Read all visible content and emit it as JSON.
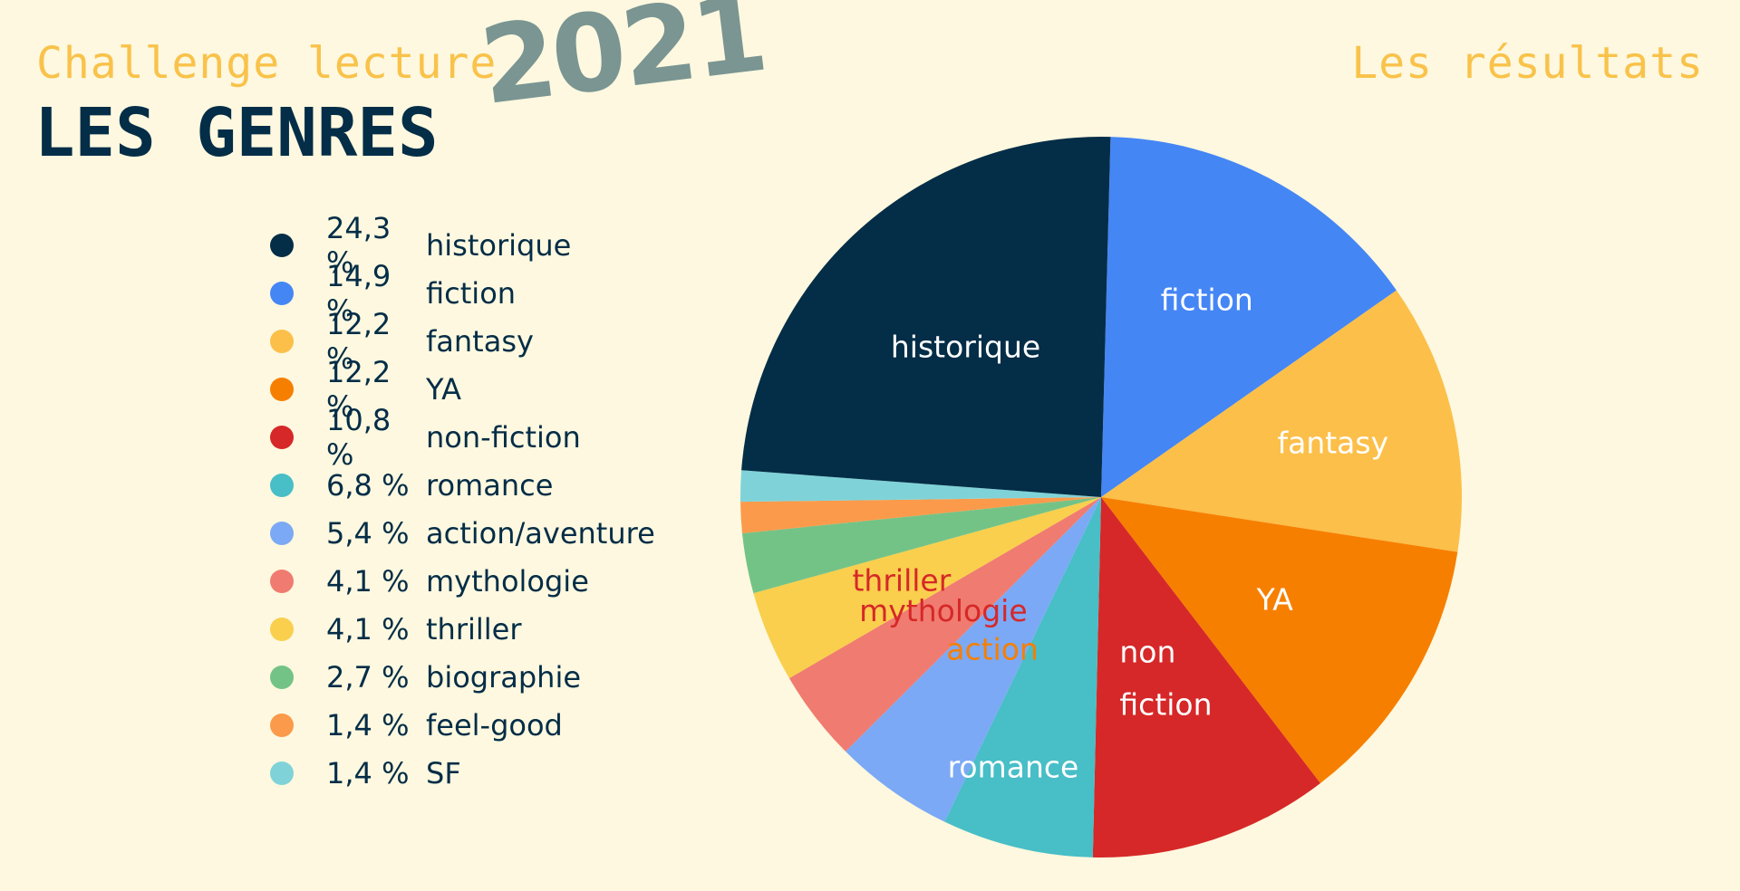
{
  "header": {
    "subtitle": "Challenge lecture",
    "year": "2021",
    "title": "LES GENRES",
    "results_label": "Les résultats"
  },
  "colors": {
    "background": "#fdf8df",
    "title": "#042d47",
    "accent": "#f9c24a",
    "year": "#7a9592"
  },
  "legend": [
    {
      "pct": "24,3 %",
      "label": "historique",
      "color": "#042d47"
    },
    {
      "pct": "14,9 %",
      "label": "fiction",
      "color": "#4586f5"
    },
    {
      "pct": "12,2 %",
      "label": "fantasy",
      "color": "#fcbf49"
    },
    {
      "pct": "12,2 %",
      "label": "YA",
      "color": "#f77f00"
    },
    {
      "pct": "10,8 %",
      "label": "non-fiction",
      "color": "#d62828"
    },
    {
      "pct": "6,8 %",
      "label": "romance",
      "color": "#48bec7"
    },
    {
      "pct": "5,4 %",
      "label": "action/aventure",
      "color": "#7ba9f5"
    },
    {
      "pct": "4,1 %",
      "label": "mythologie",
      "color": "#f07b70"
    },
    {
      "pct": "4,1 %",
      "label": "thriller",
      "color": "#f9cf4d"
    },
    {
      "pct": "2,7 %",
      "label": "biographie",
      "color": "#74c386"
    },
    {
      "pct": "1,4 %",
      "label": "feel-good",
      "color": "#fb9a4b"
    },
    {
      "pct": "1,4 %",
      "label": "SF",
      "color": "#7fd3d8"
    }
  ],
  "chart_data": {
    "type": "pie",
    "start": "top",
    "direction": "clockwise",
    "slices": [
      {
        "name": "fiction",
        "value": 14.9,
        "color": "#4586f5",
        "label": [
          "fiction"
        ],
        "label_color": "#ffffff"
      },
      {
        "name": "fantasy",
        "value": 12.2,
        "color": "#fcbf49",
        "label": [
          "fantasy"
        ],
        "label_color": "#ffffff"
      },
      {
        "name": "YA",
        "value": 12.2,
        "color": "#f77f00",
        "label": [
          "YA"
        ],
        "label_color": "#ffffff"
      },
      {
        "name": "non-fiction",
        "value": 10.8,
        "color": "#d62828",
        "label": [
          "non",
          "fiction"
        ],
        "label_color": "#ffffff"
      },
      {
        "name": "romance",
        "value": 6.8,
        "color": "#48bec7",
        "label": [
          "romance"
        ],
        "label_color": "#ffffff"
      },
      {
        "name": "action/aventure",
        "value": 5.4,
        "color": "#7ba9f5",
        "label": [
          "action"
        ],
        "label_color": "#f77f00"
      },
      {
        "name": "mythologie",
        "value": 4.1,
        "color": "#f07b70",
        "label": [
          "mythologie"
        ],
        "label_color": "#d62828"
      },
      {
        "name": "thriller",
        "value": 4.1,
        "color": "#f9cf4d",
        "label": [
          "thriller"
        ],
        "label_color": "#d62828"
      },
      {
        "name": "biographie",
        "value": 2.7,
        "color": "#74c386",
        "label": [],
        "label_color": "#ffffff"
      },
      {
        "name": "feel-good",
        "value": 1.4,
        "color": "#fb9a4b",
        "label": [],
        "label_color": "#ffffff"
      },
      {
        "name": "SF",
        "value": 1.4,
        "color": "#7fd3d8",
        "label": [],
        "label_color": "#ffffff"
      },
      {
        "name": "historique",
        "value": 24.3,
        "color": "#042d47",
        "label": [
          "historique"
        ],
        "label_color": "#ffffff"
      }
    ]
  }
}
